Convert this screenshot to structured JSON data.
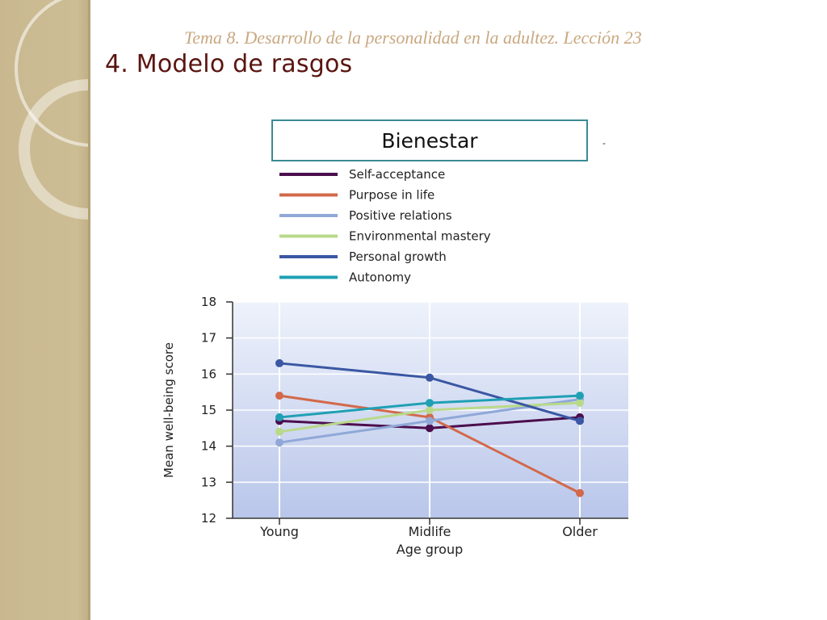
{
  "header": {
    "subtitle": "Tema 8. Desarrollo de la personalidad en la adultez.  Lección 23",
    "title": "4. Modelo de rasgos",
    "box_label": "Bienestar",
    "dash": "-"
  },
  "theme": {
    "sidebar": "#cdbd95",
    "title_color": "#5a1510",
    "subtitle_color": "#c9a880",
    "box_border": "#3a8a93"
  },
  "chart_data": {
    "type": "line",
    "categories": [
      "Young",
      "Midlife",
      "Older"
    ],
    "xlabel": "Age group",
    "ylabel": "Mean well-being score",
    "ylim": [
      12,
      18
    ],
    "yticks": [
      12,
      13,
      14,
      15,
      16,
      17,
      18
    ],
    "grid": true,
    "legend": "top",
    "series": [
      {
        "name": "Self-acceptance",
        "color": "#4b0e4e",
        "values": [
          14.7,
          14.5,
          14.8
        ]
      },
      {
        "name": "Purpose in life",
        "color": "#d2694a",
        "values": [
          15.4,
          14.8,
          12.7
        ]
      },
      {
        "name": "Positive relations",
        "color": "#8fa8d8",
        "values": [
          14.1,
          14.7,
          15.3
        ]
      },
      {
        "name": "Environmental mastery",
        "color": "#b9d98a",
        "values": [
          14.4,
          15.0,
          15.2
        ]
      },
      {
        "name": "Personal growth",
        "color": "#3a57a3",
        "values": [
          16.3,
          15.9,
          14.7
        ]
      },
      {
        "name": "Autonomy",
        "color": "#1fa0b4",
        "values": [
          14.8,
          15.2,
          15.4
        ]
      }
    ]
  }
}
